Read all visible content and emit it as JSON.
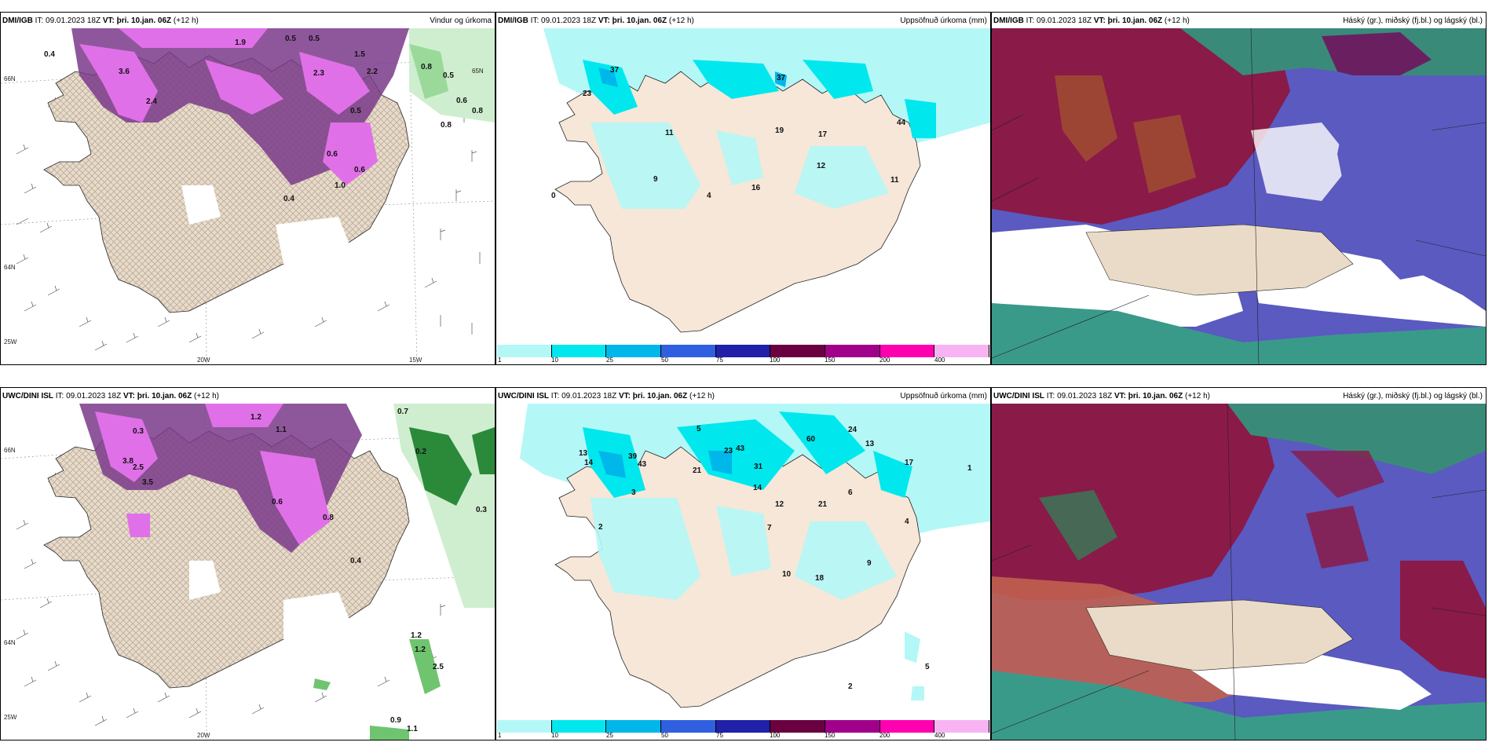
{
  "panels": {
    "p1": {
      "source": "DMI/IGB",
      "it": "IT: 09.01.2023 18Z",
      "vt": "VT: þri. 10.jan. 06Z",
      "lead": "(+12 h)",
      "title": "Vindur og úrkoma"
    },
    "p2": {
      "source": "DMI/IGB",
      "it": "IT: 09.01.2023 18Z",
      "vt": "VT: þri. 10.jan. 06Z",
      "lead": "(+12 h)",
      "title": "Uppsöfnuð úrkoma (mm)"
    },
    "p3": {
      "source": "DMI/IGB",
      "it": "IT: 09.01.2023 18Z",
      "vt": "VT: þri. 10.jan. 06Z",
      "lead": "(+12 h)",
      "title": "Háský (gr.), miðský (fj.bl.) og lágský (bl.)"
    },
    "p4": {
      "source": "UWC/DINI ISL",
      "it": "IT: 09.01.2023 18Z",
      "vt": "VT: þri. 10.jan. 06Z",
      "lead": "(+12 h)",
      "title": ""
    },
    "p5": {
      "source": "UWC/DINI ISL",
      "it": "IT: 09.01.2023 18Z",
      "vt": "VT: þri. 10.jan. 06Z",
      "lead": "(+12 h)",
      "title": "Uppsöfnuð úrkoma (mm)"
    },
    "p6": {
      "source": "UWC/DINI ISL",
      "it": "IT: 09.01.2023 18Z",
      "vt": "VT: þri. 10.jan. 06Z",
      "lead": "(+12 h)",
      "title": "Háský (gr.), miðský (fj.bl.) og lágský (bl.)"
    }
  },
  "axis_labels": {
    "lat66": "66N",
    "lat64": "64N",
    "lat65": "65N",
    "lon20": "20W",
    "lon15": "15W",
    "lon25": "25W"
  },
  "legend": {
    "ticks": [
      "1",
      "10",
      "25",
      "50",
      "75",
      "100",
      "150",
      "200",
      "400"
    ],
    "colors": [
      "#b4f7f7",
      "#00e8ee",
      "#00b7ea",
      "#3060e0",
      "#2020a8",
      "#6a0040",
      "#a0008a",
      "#ff00b0",
      "#f8b4f2"
    ]
  },
  "values": {
    "p1": [
      "0.4",
      "3.6",
      "2.4",
      "1.9",
      "0.5",
      "0.5",
      "1.5",
      "2.2",
      "2.3",
      "0.8",
      "0.5",
      "0.6",
      "0.8",
      "0.8",
      "0.6",
      "0.6",
      "0.5",
      "0.4",
      "1.0"
    ],
    "p2": [
      "23",
      "37",
      "37",
      "11",
      "9",
      "19",
      "17",
      "12",
      "16",
      "11",
      "44",
      "4",
      "0"
    ],
    "p4": [
      "0.3",
      "2.5",
      "3.5",
      "3.8",
      "1.2",
      "1.1",
      "0.6",
      "0.8",
      "0.7",
      "0.2",
      "0.3",
      "1.2",
      "1.2",
      "2.5",
      "0.9",
      "1.1",
      "0.4"
    ],
    "p5": [
      "13",
      "14",
      "39",
      "43",
      "21",
      "23",
      "43",
      "60",
      "24",
      "13",
      "17",
      "31",
      "14",
      "12",
      "21",
      "6",
      "7",
      "5",
      "4",
      "3",
      "2",
      "9",
      "10",
      "18",
      "1",
      "5",
      "2"
    ]
  }
}
